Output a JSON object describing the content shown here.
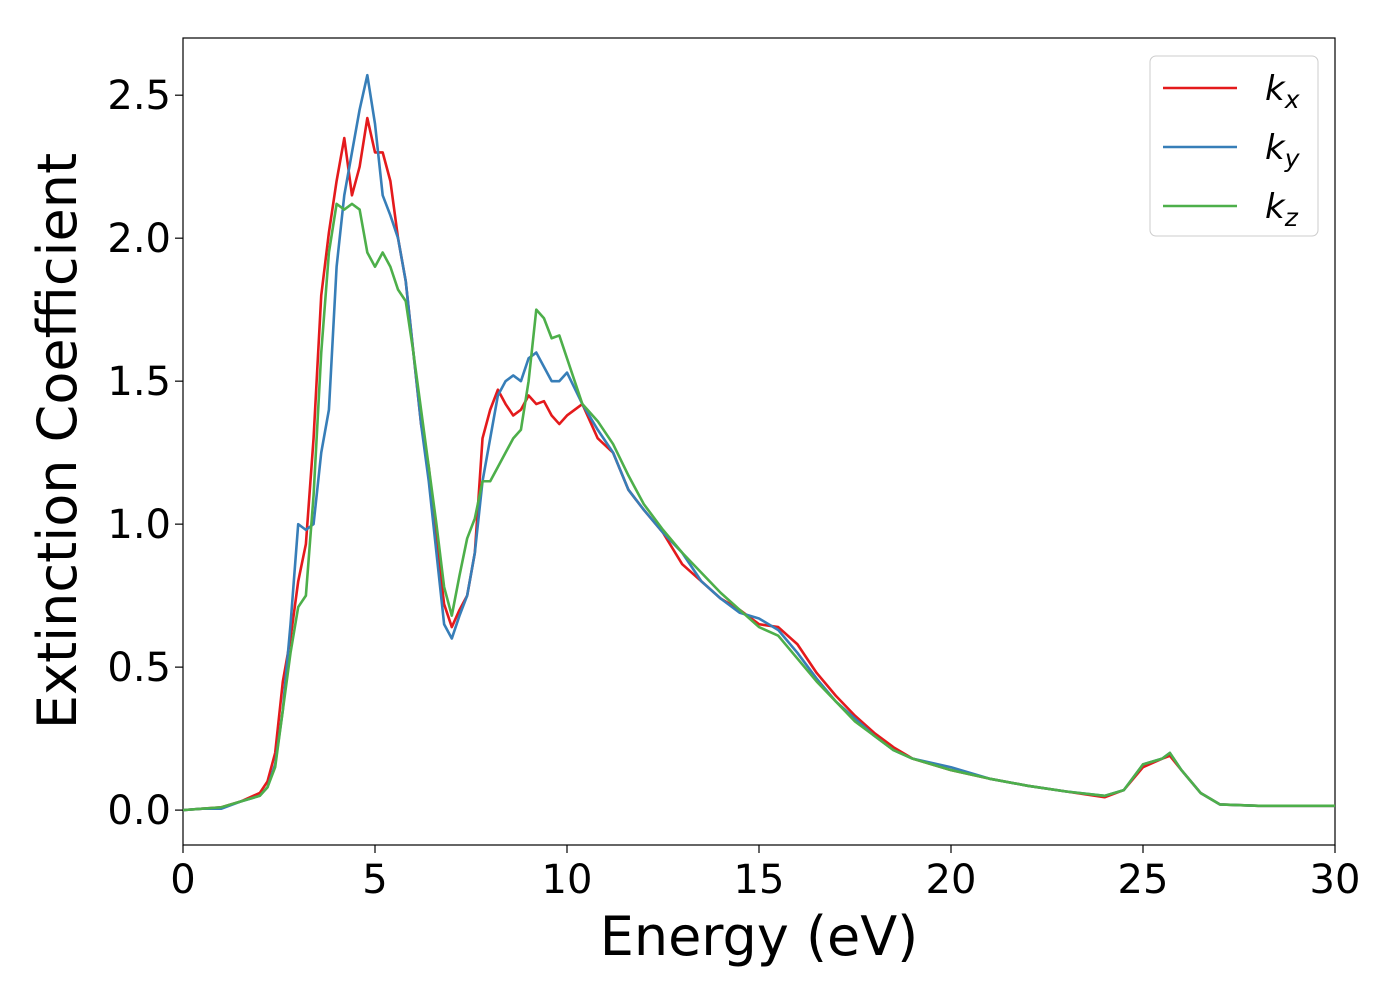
{
  "chart_data": {
    "type": "line",
    "x_label": "Energy (eV)",
    "y_label": "Extinction Coefficient",
    "x": [
      0,
      0.5,
      1,
      1.5,
      2,
      2.2,
      2.4,
      2.6,
      2.8,
      3.0,
      3.2,
      3.4,
      3.6,
      3.8,
      4.0,
      4.2,
      4.4,
      4.6,
      4.8,
      5.0,
      5.2,
      5.4,
      5.6,
      5.8,
      6.0,
      6.2,
      6.4,
      6.6,
      6.8,
      7.0,
      7.2,
      7.4,
      7.6,
      7.8,
      8.0,
      8.2,
      8.4,
      8.6,
      8.8,
      9.0,
      9.2,
      9.4,
      9.6,
      9.8,
      10.0,
      10.4,
      10.8,
      11.2,
      11.6,
      12,
      12.5,
      13,
      13.5,
      14,
      14.5,
      15,
      15.5,
      16,
      16.5,
      17,
      17.5,
      18,
      18.5,
      19,
      20,
      21,
      22,
      23,
      24,
      24.5,
      25,
      25.5,
      25.7,
      26,
      26.5,
      27,
      28,
      29,
      30
    ],
    "series": [
      {
        "name": "kx",
        "color": "#e41a1c",
        "values": [
          0,
          0.005,
          0.01,
          0.03,
          0.06,
          0.1,
          0.2,
          0.45,
          0.6,
          0.8,
          0.93,
          1.3,
          1.8,
          2.02,
          2.2,
          2.35,
          2.15,
          2.25,
          2.42,
          2.3,
          2.3,
          2.2,
          2.0,
          1.85,
          1.6,
          1.35,
          1.2,
          0.95,
          0.72,
          0.64,
          0.7,
          0.75,
          0.9,
          1.3,
          1.4,
          1.47,
          1.42,
          1.38,
          1.4,
          1.45,
          1.42,
          1.43,
          1.38,
          1.35,
          1.38,
          1.42,
          1.3,
          1.25,
          1.12,
          1.05,
          0.97,
          0.86,
          0.8,
          0.74,
          0.7,
          0.65,
          0.64,
          0.58,
          0.48,
          0.4,
          0.33,
          0.27,
          0.22,
          0.18,
          0.14,
          0.11,
          0.085,
          0.065,
          0.045,
          0.07,
          0.15,
          0.18,
          0.19,
          0.14,
          0.06,
          0.02,
          0.015,
          0.015,
          0.015
        ]
      },
      {
        "name": "ky",
        "color": "#377eb8",
        "values": [
          0,
          0.005,
          0.005,
          0.03,
          0.05,
          0.08,
          0.16,
          0.35,
          0.65,
          1.0,
          0.98,
          1.0,
          1.25,
          1.4,
          1.9,
          2.15,
          2.3,
          2.45,
          2.57,
          2.4,
          2.15,
          2.08,
          2.0,
          1.85,
          1.6,
          1.35,
          1.15,
          0.9,
          0.65,
          0.6,
          0.68,
          0.75,
          0.9,
          1.15,
          1.3,
          1.45,
          1.5,
          1.52,
          1.5,
          1.58,
          1.6,
          1.55,
          1.5,
          1.5,
          1.53,
          1.42,
          1.33,
          1.25,
          1.12,
          1.05,
          0.97,
          0.9,
          0.8,
          0.74,
          0.69,
          0.67,
          0.63,
          0.55,
          0.46,
          0.38,
          0.32,
          0.26,
          0.21,
          0.18,
          0.15,
          0.11,
          0.085,
          0.065,
          0.05,
          0.07,
          0.16,
          0.18,
          0.2,
          0.14,
          0.06,
          0.02,
          0.015,
          0.015,
          0.015
        ]
      },
      {
        "name": "kz",
        "color": "#4daf4a",
        "values": [
          0,
          0.005,
          0.01,
          0.03,
          0.05,
          0.08,
          0.15,
          0.35,
          0.55,
          0.71,
          0.75,
          1.1,
          1.6,
          1.95,
          2.12,
          2.1,
          2.12,
          2.1,
          1.95,
          1.9,
          1.95,
          1.9,
          1.82,
          1.78,
          1.6,
          1.4,
          1.2,
          1.0,
          0.78,
          0.68,
          0.82,
          0.95,
          1.02,
          1.15,
          1.15,
          1.2,
          1.25,
          1.3,
          1.33,
          1.5,
          1.75,
          1.72,
          1.65,
          1.66,
          1.58,
          1.42,
          1.36,
          1.28,
          1.17,
          1.07,
          0.98,
          0.9,
          0.83,
          0.76,
          0.7,
          0.64,
          0.61,
          0.53,
          0.45,
          0.38,
          0.31,
          0.26,
          0.21,
          0.18,
          0.14,
          0.11,
          0.085,
          0.065,
          0.05,
          0.07,
          0.16,
          0.18,
          0.2,
          0.14,
          0.06,
          0.02,
          0.015,
          0.015,
          0.015
        ]
      }
    ],
    "xlim": [
      0,
      30
    ],
    "xticks": [
      0,
      5,
      10,
      15,
      20,
      25,
      30
    ],
    "ylim": [
      -0.122,
      2.7
    ],
    "yticks": [
      {
        "value": 0,
        "label": "0.0"
      },
      0.5,
      {
        "value": 1,
        "label": "1.0"
      },
      1.5,
      {
        "value": 2,
        "label": "2.0"
      },
      2.5
    ],
    "legend": "upper right",
    "grid": false
  }
}
